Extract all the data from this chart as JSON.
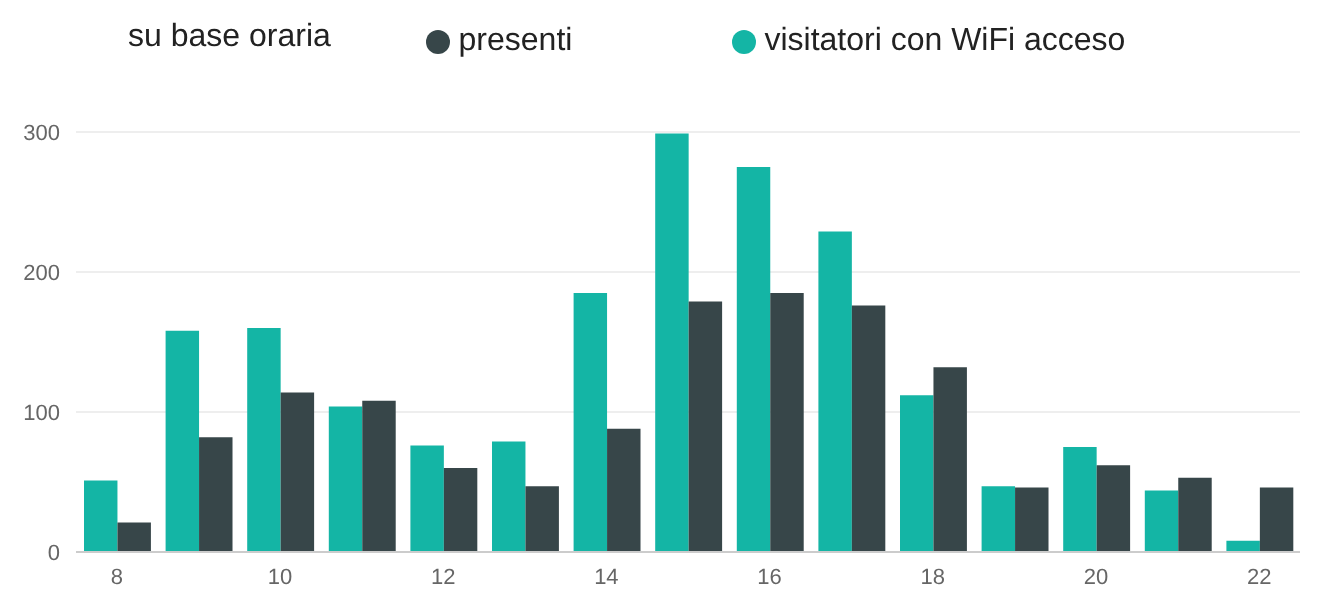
{
  "chart_data": {
    "type": "bar",
    "title": "su base oraria",
    "x": [
      8,
      9,
      10,
      11,
      12,
      13,
      14,
      15,
      16,
      17,
      18,
      19,
      20,
      21,
      22
    ],
    "series": [
      {
        "name": "visitatori con WiFi acceso",
        "color": "#14b5a5",
        "values": [
          51,
          158,
          160,
          104,
          76,
          79,
          185,
          299,
          275,
          229,
          112,
          47,
          75,
          44,
          8
        ]
      },
      {
        "name": "presenti",
        "color": "#374649",
        "values": [
          21,
          82,
          114,
          108,
          60,
          47,
          88,
          179,
          185,
          176,
          132,
          46,
          62,
          53,
          46
        ]
      }
    ],
    "xlim": [
      7.5,
      22.5
    ],
    "xticks": [
      8,
      10,
      12,
      14,
      16,
      18,
      20,
      22
    ],
    "ylim": [
      0,
      300
    ],
    "yticks": [
      0,
      100,
      200,
      300
    ],
    "grid": "y",
    "legend": "top"
  }
}
